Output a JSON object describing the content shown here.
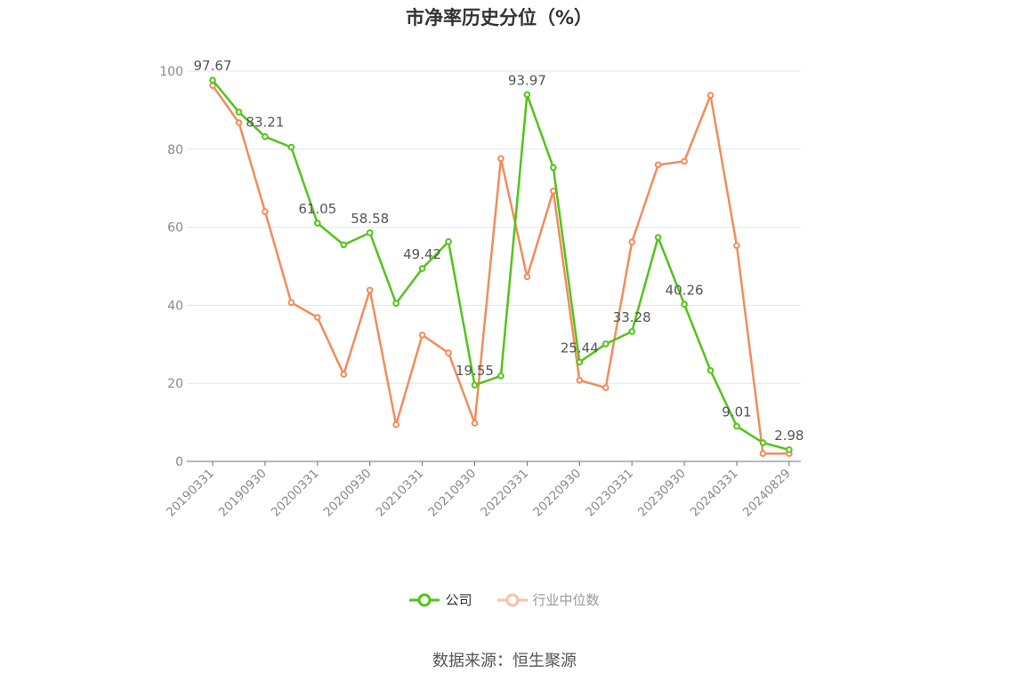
{
  "chart_data": {
    "type": "line",
    "title": "市净率历史分位（%）",
    "xlabel": "",
    "ylabel": "",
    "ylim": [
      0,
      100
    ],
    "yticks": [
      0,
      20,
      40,
      60,
      80,
      100
    ],
    "x": [
      "20190331",
      "20190630",
      "20190930",
      "20191231",
      "20200331",
      "20200630",
      "20200930",
      "20201231",
      "20210331",
      "20210630",
      "20210930",
      "20211231",
      "20220331",
      "20220630",
      "20220930",
      "20221231",
      "20230331",
      "20230630",
      "20230930",
      "20231231",
      "20240331",
      "20240630",
      "20240829"
    ],
    "xtick_labels": [
      "20190331",
      "20190930",
      "20200331",
      "20200930",
      "20210331",
      "20210930",
      "20220331",
      "20220930",
      "20230331",
      "20230930",
      "20240331",
      "20240829"
    ],
    "grid": true,
    "legend_position": "bottom",
    "series": [
      {
        "name": "公司",
        "color": "#52c41a",
        "values": [
          97.67,
          89.5,
          83.21,
          80.5,
          61.05,
          55.5,
          58.58,
          40.5,
          49.42,
          56.3,
          19.55,
          21.9,
          93.97,
          75.3,
          25.44,
          30.1,
          33.28,
          57.4,
          40.26,
          23.3,
          9.01,
          4.8,
          2.98
        ],
        "labels": {
          "0": "97.67",
          "2": "83.21",
          "4": "61.05",
          "6": "58.58",
          "8": "49.42",
          "10": "19.55",
          "12": "93.97",
          "14": "25.44",
          "16": "33.28",
          "18": "40.26",
          "20": "9.01",
          "22": "2.98"
        }
      },
      {
        "name": "行业中位数",
        "color": "#f28c5c",
        "values": [
          96.3,
          86.8,
          64.0,
          40.7,
          36.9,
          22.3,
          43.9,
          9.4,
          32.4,
          27.8,
          9.8,
          77.6,
          47.3,
          69.3,
          20.8,
          18.9,
          56.2,
          76.0,
          76.9,
          93.8,
          55.3,
          2.0,
          2.0
        ]
      }
    ]
  },
  "legend": {
    "company_label": "公司",
    "industry_label": "行业中位数"
  },
  "source": "数据来源：恒生聚源",
  "colors": {
    "axis": "#6e7079",
    "grid": "#e0e6f1",
    "tick_text": "#8a8a8a",
    "label_text": "#555555"
  }
}
